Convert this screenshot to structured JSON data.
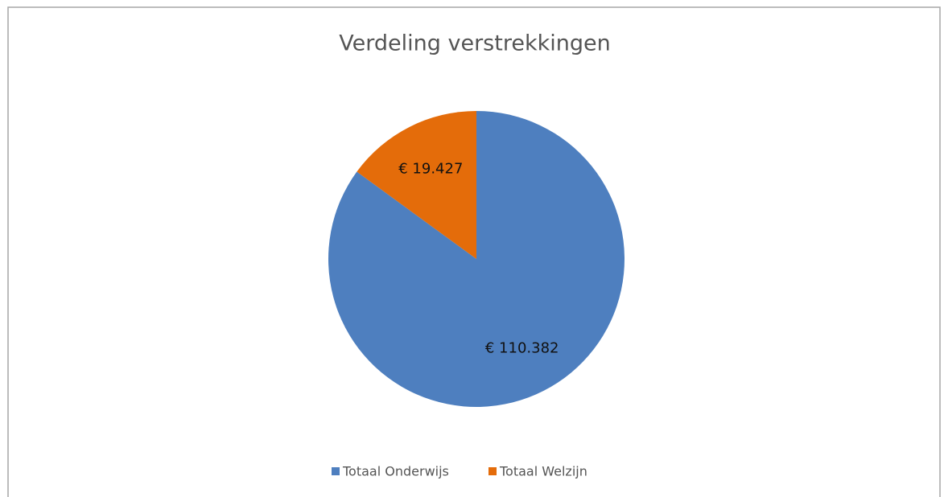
{
  "chart_data": {
    "type": "pie",
    "title": "Verdeling verstrekkingen",
    "categories": [
      "Totaal Onderwijs",
      "Totaal Welzijn"
    ],
    "values": [
      110382,
      19427
    ],
    "value_labels": [
      "€ 110.382",
      "€ 19.427"
    ],
    "colors": [
      "#4e7fbf",
      "#e46c0a"
    ],
    "legend": "bottom"
  }
}
